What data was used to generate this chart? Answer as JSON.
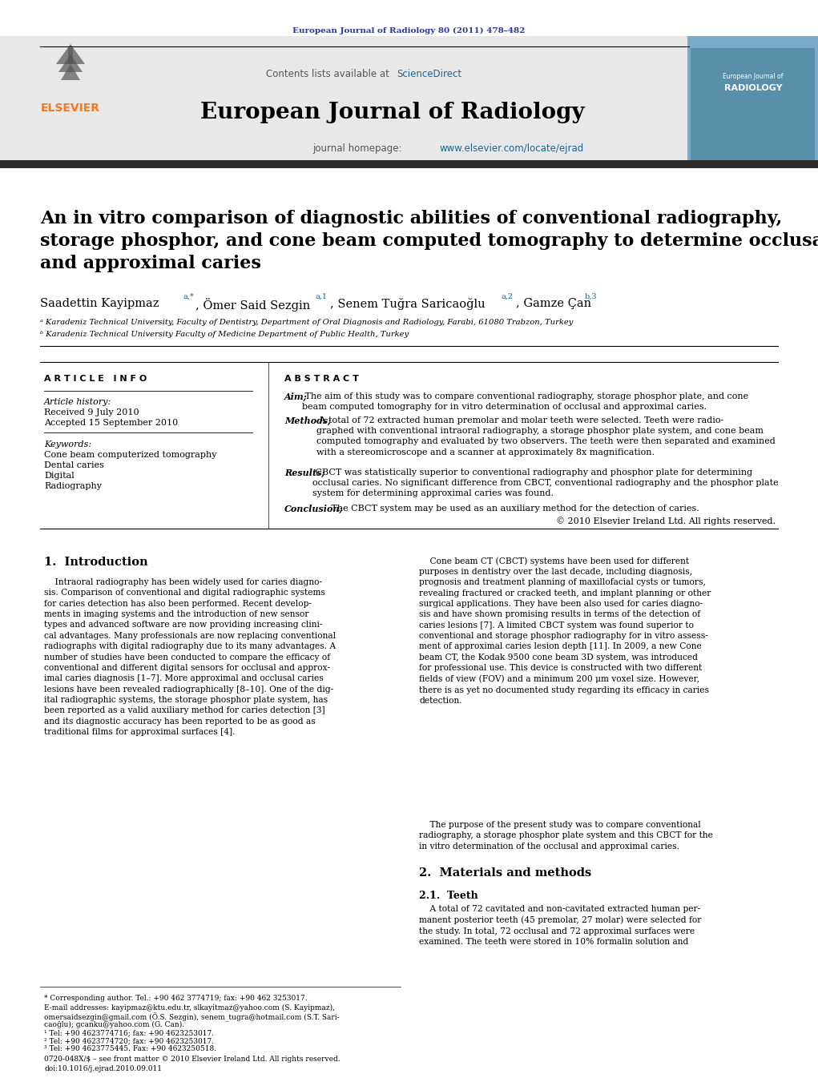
{
  "page_title_line": "European Journal of Radiology 80 (2011) 478–482",
  "journal_name": "European Journal of Radiology",
  "contents_line": "Contents lists available at ScienceDirect",
  "journal_homepage": "journal homepage: www.elsevier.com/locate/ejrad",
  "article_title": "An in vitro comparison of diagnostic abilities of conventional radiography,\nstorage phosphor, and cone beam computed tomography to determine occlusal\nand approximal caries",
  "affil_a": "ᵃ Karadeniz Technical University, Faculty of Dentistry, Department of Oral Diagnosis and Radiology, Farabi, 61080 Trabzon, Turkey",
  "affil_b": "ᵇ Karadeniz Technical University Faculty of Medicine Department of Public Health, Turkey",
  "article_info_header": "A R T I C L E   I N F O",
  "abstract_header": "A B S T R A C T",
  "article_history_label": "Article history:",
  "received": "Received 9 July 2010",
  "accepted": "Accepted 15 September 2010",
  "keywords_label": "Keywords:",
  "keywords": [
    "Cone beam computerized tomography",
    "Dental caries",
    "Digital",
    "Radiography"
  ],
  "abstract_aim_label": "Aim;",
  "abstract_aim": " The aim of this study was to compare conventional radiography, storage phosphor plate, and cone\nbeam computed tomography for in vitro determination of occlusal and approximal caries.",
  "abstract_methods_label": "Methods;",
  "abstract_methods": " A total of 72 extracted human premolar and molar teeth were selected. Teeth were radio-\ngraphed with conventional intraoral radiography, a storage phosphor plate system, and cone beam\ncomputed tomography and evaluated by two observers. The teeth were then separated and examined\nwith a stereomicroscope and a scanner at approximately 8x magnification.",
  "abstract_results_label": "Results;",
  "abstract_results": " CBCT was statistically superior to conventional radiography and phosphor plate for determining\nocclusal caries. No significant difference from CBCT, conventional radiography and the phosphor plate\nsystem for determining approximal caries was found.",
  "abstract_conclusion_label": "Conclusion;",
  "abstract_conclusion": " The CBCT system may be used as an auxiliary method for the detection of caries.",
  "abstract_copyright": "© 2010 Elsevier Ireland Ltd. All rights reserved.",
  "intro_heading": "1.  Introduction",
  "intro_col1": "    Intraoral radiography has been widely used for caries diagno-\nsis. Comparison of conventional and digital radiographic systems\nfor caries detection has also been performed. Recent develop-\nments in imaging systems and the introduction of new sensor\ntypes and advanced software are now providing increasing clini-\ncal advantages. Many professionals are now replacing conventional\nradiographs with digital radiography due to its many advantages. A\nnumber of studies have been conducted to compare the efficacy of\nconventional and different digital sensors for occlusal and approx-\nimal caries diagnosis [1–7]. More approximal and occlusal caries\nlesions have been revealed radiographically [8–10]. One of the dig-\nital radiographic systems, the storage phosphor plate system, has\nbeen reported as a valid auxiliary method for caries detection [3]\nand its diagnostic accuracy has been reported to be as good as\ntraditional films for approximal surfaces [4].",
  "intro_col2": "    Cone beam CT (CBCT) systems have been used for different\npurposes in dentistry over the last decade, including diagnosis,\nprognosis and treatment planning of maxillofacial cysts or tumors,\nrevealing fractured or cracked teeth, and implant planning or other\nsurgical applications. They have been also used for caries diagno-\nsis and have shown promising results in terms of the detection of\ncaries lesions [7]. A limited CBCT system was found superior to\nconventional and storage phosphor radiography for in vitro assess-\nment of approximal caries lesion depth [11]. In 2009, a new Cone\nbeam CT, the Kodak 9500 cone beam 3D system, was introduced\nfor professional use. This device is constructed with two different\nfields of view (FOV) and a minimum 200 μm voxel size. However,\nthere is as yet no documented study regarding its efficacy in caries\ndetection.",
  "intro_purpose": "    The purpose of the present study was to compare conventional\nradiography, a storage phosphor plate system and this CBCT for the\nin vitro determination of the occlusal and approximal caries.",
  "section2_heading": "2.  Materials and methods",
  "section21_heading": "2.1.  Teeth",
  "section21_text": "    A total of 72 cavitated and non-cavitated extracted human per-\nmanent posterior teeth (45 premolar, 27 molar) were selected for\nthe study. In total, 72 occlusal and 72 approximal surfaces were\nexamined. The teeth were stored in 10% formalin solution and",
  "footer_corresponding": "* Corresponding author. Tel.: +90 462 3774719; fax: +90 462 3253017.",
  "footer_email1": "E-mail addresses: kayipmaz@ktu.edu.tr, slkayitmaz@yahoo.com (S. Kayipmaz),",
  "footer_email2": "omersaidsezgin@gmail.com (Ö.S. Sezgin), senem_tugra@hotmail.com (S.T. Sari-",
  "footer_email3": "caoğlu); gcanku@yahoo.com (G. Can).",
  "footer_tel1": "¹ Tel: +90 4623774716; fax: +90 4623253017.",
  "footer_tel2": "² Tel: +90 4623774720; fax: +90 4623253017.",
  "footer_tel3": "³ Tel: +90 4623775445. Fax: +90 4623250518.",
  "footer_issn1": "0720-048X/$ – see front matter © 2010 Elsevier Ireland Ltd. All rights reserved.",
  "footer_issn2": "doi:10.1016/j.ejrad.2010.09.011",
  "bg_color": "#ffffff",
  "header_bg": "#e8e8e8",
  "dark_bar_color": "#2a2a2a",
  "elsevier_orange": "#f47920",
  "sciencedirect_blue": "#1a6496",
  "link_color": "#1a6496",
  "text_color": "#000000",
  "header_text_color": "#2b3990"
}
